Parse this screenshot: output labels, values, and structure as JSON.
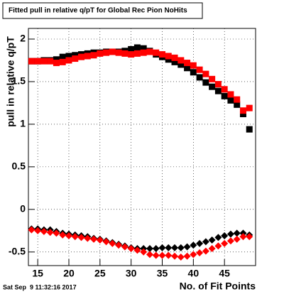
{
  "chart_data": {
    "type": "scatter",
    "title": "Fitted pull in relative q/pT for Global Rec Pion NoHits",
    "x_label": "No. of Fit Points",
    "y_label": "pull in relative q/pT",
    "timestamp": "Sat Sep  9 11:32:16 2017",
    "x": [
      14,
      15,
      16,
      17,
      18,
      19,
      20,
      21,
      22,
      23,
      24,
      25,
      26,
      27,
      28,
      29,
      30,
      31,
      32,
      33,
      34,
      35,
      36,
      37,
      38,
      39,
      40,
      41,
      42,
      43,
      44,
      45,
      46,
      47,
      48,
      49
    ],
    "series": [
      {
        "color": "#000000",
        "marker": "square",
        "values": [
          1.74,
          1.74,
          1.75,
          1.75,
          1.76,
          1.79,
          1.8,
          1.81,
          1.82,
          1.83,
          1.84,
          1.84,
          1.85,
          1.85,
          1.85,
          1.86,
          1.88,
          1.9,
          1.89,
          1.86,
          1.82,
          1.79,
          1.76,
          1.73,
          1.7,
          1.66,
          1.61,
          1.55,
          1.49,
          1.44,
          1.39,
          1.33,
          1.28,
          1.23,
          1.12,
          0.94
        ]
      },
      {
        "color": "#ff0000",
        "marker": "square",
        "values": [
          1.74,
          1.74,
          1.74,
          1.74,
          1.72,
          1.73,
          1.75,
          1.77,
          1.79,
          1.8,
          1.81,
          1.83,
          1.84,
          1.85,
          1.84,
          1.83,
          1.82,
          1.83,
          1.84,
          1.85,
          1.84,
          1.82,
          1.8,
          1.78,
          1.75,
          1.72,
          1.69,
          1.64,
          1.59,
          1.53,
          1.47,
          1.41,
          1.35,
          1.29,
          1.16,
          1.19
        ]
      },
      {
        "color": "#000000",
        "marker": "diamond",
        "values": [
          -0.23,
          -0.23,
          -0.24,
          -0.24,
          -0.26,
          -0.28,
          -0.29,
          -0.3,
          -0.31,
          -0.32,
          -0.34,
          -0.35,
          -0.37,
          -0.39,
          -0.41,
          -0.43,
          -0.45,
          -0.46,
          -0.46,
          -0.46,
          -0.46,
          -0.45,
          -0.45,
          -0.45,
          -0.45,
          -0.44,
          -0.42,
          -0.4,
          -0.38,
          -0.36,
          -0.33,
          -0.31,
          -0.29,
          -0.28,
          -0.28,
          -0.3
        ]
      },
      {
        "color": "#ff0000",
        "marker": "diamond",
        "values": [
          -0.24,
          -0.25,
          -0.26,
          -0.27,
          -0.28,
          -0.3,
          -0.31,
          -0.32,
          -0.33,
          -0.34,
          -0.35,
          -0.36,
          -0.38,
          -0.4,
          -0.42,
          -0.44,
          -0.46,
          -0.48,
          -0.5,
          -0.53,
          -0.54,
          -0.54,
          -0.54,
          -0.55,
          -0.56,
          -0.55,
          -0.53,
          -0.51,
          -0.49,
          -0.46,
          -0.43,
          -0.4,
          -0.37,
          -0.35,
          -0.32,
          -0.32
        ]
      }
    ],
    "xlim": [
      13.5,
      50
    ],
    "ylim": [
      -0.66,
      2.125
    ],
    "xticks": [
      15,
      20,
      25,
      30,
      35,
      40,
      45
    ],
    "yticks": [
      -0.5,
      0,
      0.5,
      1,
      1.5,
      2
    ],
    "grid": true
  }
}
